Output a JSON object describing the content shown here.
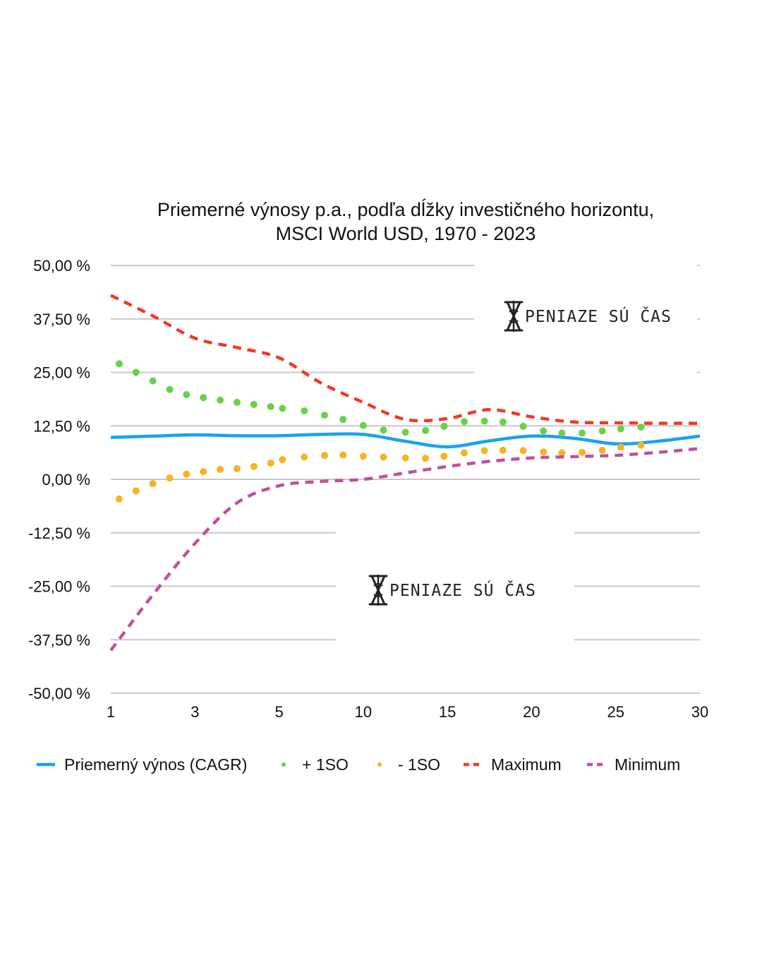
{
  "chart_data": {
    "type": "line",
    "title": "Priemerné výnosy p.a., podľa dĺžky investičného horizontu,",
    "subtitle": "MSCI World USD, 1970 - 2023",
    "xlabel": "",
    "ylabel": "",
    "x_ticks": [
      "1",
      "3",
      "5",
      "10",
      "15",
      "20",
      "25",
      "30"
    ],
    "y_ticks": [
      "50,00 %",
      "37,50 %",
      "25,00 %",
      "12,50 %",
      "0,00 %",
      "-12,50 %",
      "-25,00 %",
      "-37,50 %",
      "-50,00 %"
    ],
    "ylim": [
      -50,
      50
    ],
    "grid": true,
    "legend_position": "bottom",
    "watermark": "PENIAZE SÚ ČAS",
    "series": [
      {
        "name": "Priemerný výnos (CAGR)",
        "style": "solid",
        "color": "#1ba1f2",
        "points": [
          [
            1,
            9.8
          ],
          [
            2,
            10.1
          ],
          [
            3,
            10.4
          ],
          [
            4,
            10.2
          ],
          [
            5,
            10.2
          ],
          [
            7.5,
            10.5
          ],
          [
            10,
            10.5
          ],
          [
            12.5,
            8.9
          ],
          [
            15,
            7.6
          ],
          [
            17.5,
            9.0
          ],
          [
            20,
            10.1
          ],
          [
            22.5,
            9.6
          ],
          [
            25,
            8.3
          ],
          [
            27.5,
            8.9
          ],
          [
            30,
            10.1
          ]
        ]
      },
      {
        "name": "+ 1SO",
        "style": "dotted",
        "color": "#6ad048",
        "points": [
          [
            1.2,
            27.0
          ],
          [
            1.6,
            25.0
          ],
          [
            2.0,
            23.0
          ],
          [
            2.4,
            21.0
          ],
          [
            2.8,
            19.8
          ],
          [
            3.2,
            19.1
          ],
          [
            3.6,
            18.5
          ],
          [
            4.0,
            18.0
          ],
          [
            4.4,
            17.5
          ],
          [
            4.8,
            17.0
          ],
          [
            5.2,
            16.6
          ],
          [
            6.5,
            16.0
          ],
          [
            7.7,
            15.0
          ],
          [
            8.8,
            14.0
          ],
          [
            10.0,
            12.6
          ],
          [
            11.2,
            11.5
          ],
          [
            12.5,
            11.0
          ],
          [
            13.7,
            11.4
          ],
          [
            14.8,
            12.4
          ],
          [
            16.0,
            13.5
          ],
          [
            17.2,
            13.6
          ],
          [
            18.3,
            13.4
          ],
          [
            19.5,
            12.4
          ],
          [
            20.7,
            11.3
          ],
          [
            21.8,
            10.8
          ],
          [
            23.0,
            10.8
          ],
          [
            24.2,
            11.3
          ],
          [
            25.3,
            11.8
          ],
          [
            26.5,
            12.2
          ]
        ]
      },
      {
        "name": "- 1SO",
        "style": "dotted",
        "color": "#f5b324",
        "points": [
          [
            1.2,
            -4.6
          ],
          [
            1.6,
            -2.7
          ],
          [
            2.0,
            -1.0
          ],
          [
            2.4,
            0.3
          ],
          [
            2.8,
            1.2
          ],
          [
            3.2,
            1.8
          ],
          [
            3.6,
            2.3
          ],
          [
            4.0,
            2.5
          ],
          [
            4.4,
            3.0
          ],
          [
            4.8,
            3.8
          ],
          [
            5.2,
            4.6
          ],
          [
            6.5,
            5.2
          ],
          [
            7.7,
            5.6
          ],
          [
            8.8,
            5.7
          ],
          [
            10.0,
            5.4
          ],
          [
            11.2,
            5.2
          ],
          [
            12.5,
            5.0
          ],
          [
            13.7,
            4.9
          ],
          [
            14.8,
            5.4
          ],
          [
            16.0,
            6.2
          ],
          [
            17.2,
            6.7
          ],
          [
            18.3,
            6.8
          ],
          [
            19.5,
            6.7
          ],
          [
            20.7,
            6.4
          ],
          [
            21.8,
            6.2
          ],
          [
            23.0,
            6.3
          ],
          [
            24.2,
            6.8
          ],
          [
            25.3,
            7.5
          ],
          [
            26.5,
            8.0
          ]
        ]
      },
      {
        "name": "Maximum",
        "style": "dashed",
        "color": "#f03a24",
        "points": [
          [
            1,
            43.0
          ],
          [
            2,
            38.2
          ],
          [
            3,
            33.0
          ],
          [
            4,
            30.8
          ],
          [
            5,
            28.4
          ],
          [
            7.5,
            22.5
          ],
          [
            10,
            18.0
          ],
          [
            12.5,
            14.0
          ],
          [
            15,
            14.2
          ],
          [
            17.5,
            16.3
          ],
          [
            20,
            14.6
          ],
          [
            22.5,
            13.4
          ],
          [
            25,
            13.2
          ],
          [
            27.5,
            13.1
          ],
          [
            30,
            13.1
          ]
        ]
      },
      {
        "name": "Minimum",
        "style": "dashed",
        "color": "#c0509a",
        "points": [
          [
            1,
            -40.0
          ],
          [
            2,
            -27.0
          ],
          [
            3,
            -15.0
          ],
          [
            4,
            -5.5
          ],
          [
            5,
            -1.5
          ],
          [
            7.5,
            -0.5
          ],
          [
            10,
            0.0
          ],
          [
            12.5,
            1.5
          ],
          [
            15,
            3.0
          ],
          [
            17.5,
            4.2
          ],
          [
            20,
            5.0
          ],
          [
            22.5,
            5.3
          ],
          [
            25,
            5.6
          ],
          [
            27.5,
            6.3
          ],
          [
            30,
            7.2
          ]
        ]
      }
    ]
  }
}
